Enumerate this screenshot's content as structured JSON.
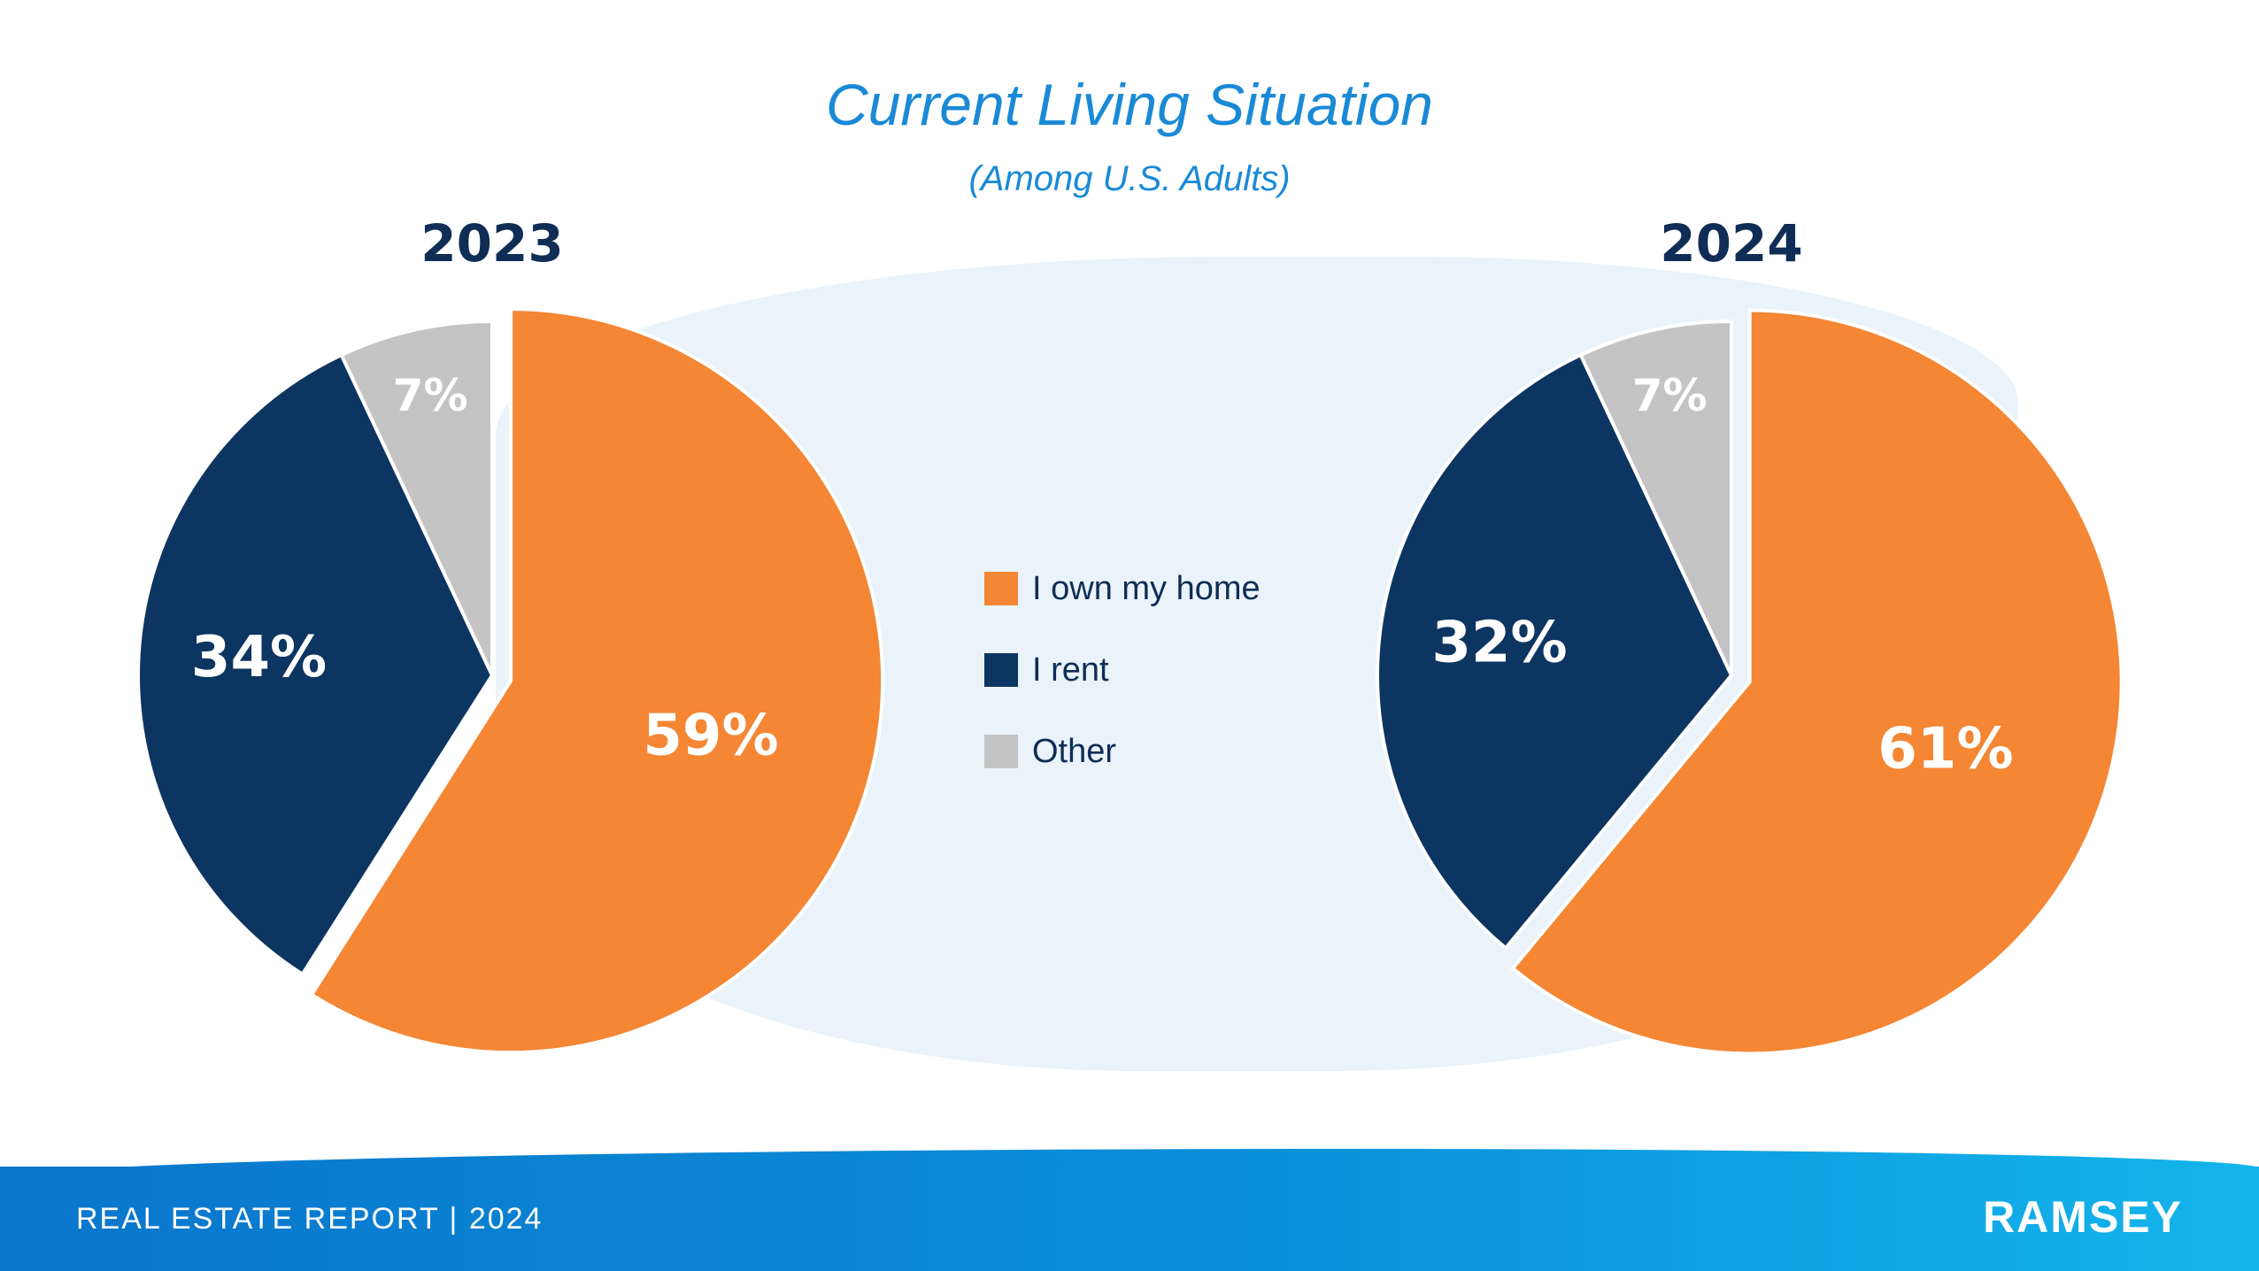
{
  "header": {
    "title": "Current Living Situation",
    "subtitle": "(Among U.S. Adults)"
  },
  "chart_data": [
    {
      "type": "pie",
      "title": "2023",
      "categories": [
        "I own my home",
        "I rent",
        "Other"
      ],
      "values": [
        59,
        34,
        7
      ],
      "labels": [
        "59%",
        "34%",
        "7%"
      ],
      "colors": [
        "#f48634",
        "#0d3561",
        "#c4c4c4"
      ]
    },
    {
      "type": "pie",
      "title": "2024",
      "categories": [
        "I own my home",
        "I rent",
        "Other"
      ],
      "values": [
        61,
        32,
        7
      ],
      "labels": [
        "61%",
        "32%",
        "7%"
      ],
      "colors": [
        "#f48634",
        "#0d3561",
        "#c4c4c4"
      ]
    }
  ],
  "legend": {
    "placement": "center",
    "items": [
      {
        "label": "I own my home",
        "color": "#f48634"
      },
      {
        "label": "I rent",
        "color": "#0d3561"
      },
      {
        "label": "Other",
        "color": "#c4c4c4"
      }
    ]
  },
  "footer": {
    "report_label": "REAL ESTATE REPORT | 2024",
    "brand": "RAMSEY"
  }
}
